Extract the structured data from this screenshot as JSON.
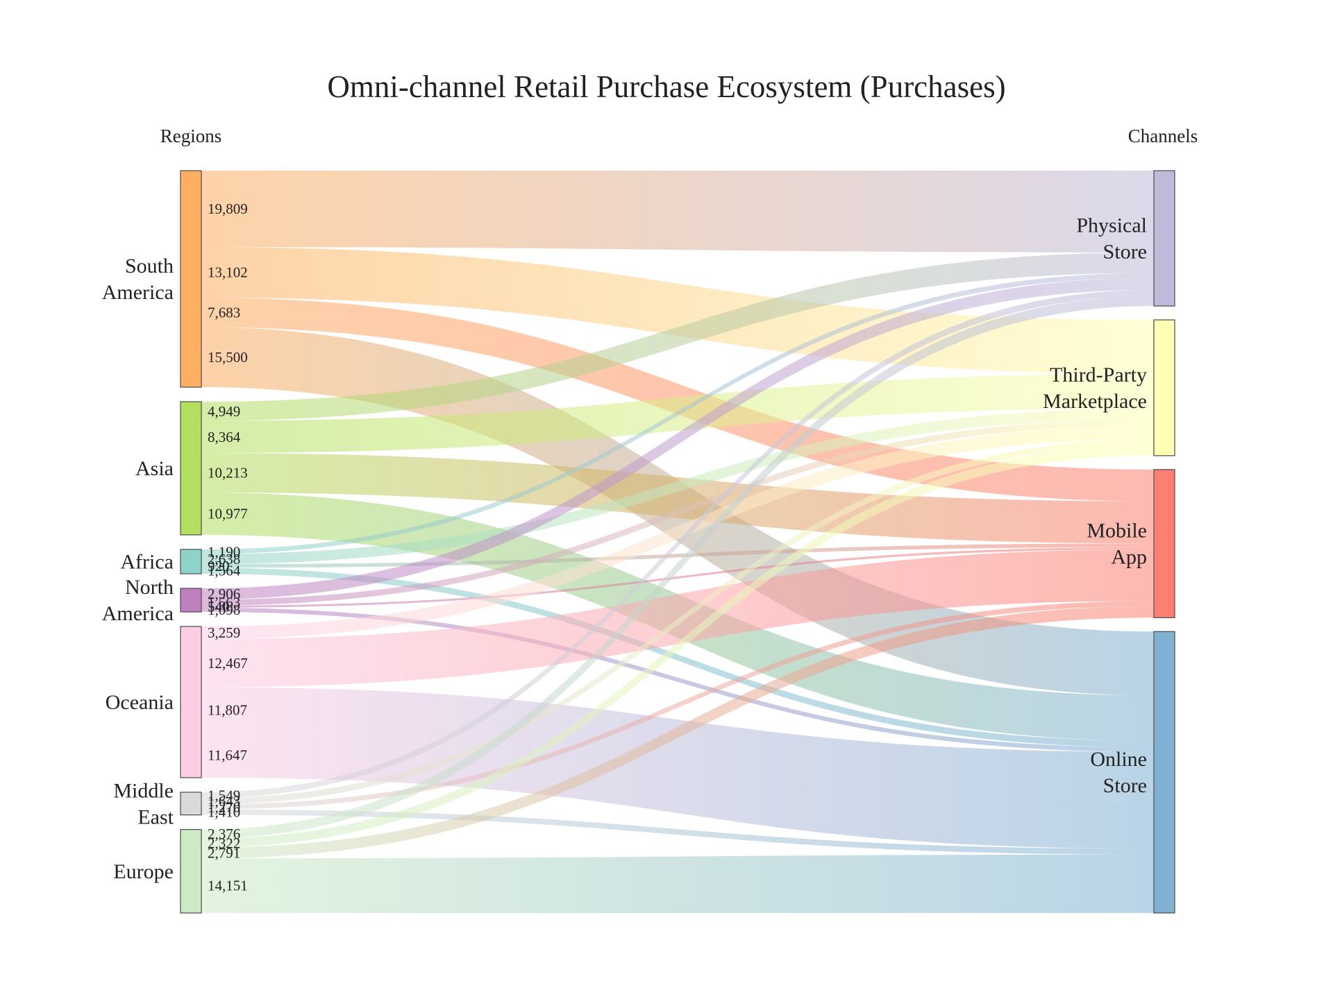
{
  "chart_data": {
    "type": "sankey",
    "title": "Omni-channel Retail Purchase Ecosystem (Purchases)",
    "source_column_label": "Regions",
    "target_column_label": "Channels",
    "sources": [
      {
        "name": "South America",
        "lines": [
          "South",
          "America"
        ],
        "color": "#fdae61"
      },
      {
        "name": "Asia",
        "lines": [
          "Asia"
        ],
        "color": "#b2df5f"
      },
      {
        "name": "Africa",
        "lines": [
          "Africa"
        ],
        "color": "#8dd3c7"
      },
      {
        "name": "North America",
        "lines": [
          "North",
          "America"
        ],
        "color": "#bf80c0"
      },
      {
        "name": "Oceania",
        "lines": [
          "Oceania"
        ],
        "color": "#fccde5"
      },
      {
        "name": "Middle East",
        "lines": [
          "Middle",
          "East"
        ],
        "color": "#d9d9d9"
      },
      {
        "name": "Europe",
        "lines": [
          "Europe"
        ],
        "color": "#ccebc5"
      }
    ],
    "targets": [
      {
        "name": "Physical Store",
        "lines": [
          "Physical",
          "Store"
        ],
        "color": "#bebada"
      },
      {
        "name": "Third-Party Marketplace",
        "lines": [
          "Third-Party",
          "Marketplace"
        ],
        "color": "#ffffb3"
      },
      {
        "name": "Mobile App",
        "lines": [
          "Mobile",
          "App"
        ],
        "color": "#fb8072"
      },
      {
        "name": "Online Store",
        "lines": [
          "Online",
          "Store"
        ],
        "color": "#80b1d3"
      }
    ],
    "flows": [
      {
        "source": "South America",
        "target": "Physical Store",
        "value": 19809,
        "label": "19,809"
      },
      {
        "source": "South America",
        "target": "Third-Party Marketplace",
        "value": 13102,
        "label": "13,102"
      },
      {
        "source": "South America",
        "target": "Mobile App",
        "value": 7683,
        "label": "7,683"
      },
      {
        "source": "South America",
        "target": "Online Store",
        "value": 15500,
        "label": "15,500"
      },
      {
        "source": "Asia",
        "target": "Physical Store",
        "value": 4949,
        "label": "4,949"
      },
      {
        "source": "Asia",
        "target": "Third-Party Marketplace",
        "value": 8364,
        "label": "8,364"
      },
      {
        "source": "Asia",
        "target": "Mobile App",
        "value": 10213,
        "label": "10,213"
      },
      {
        "source": "Asia",
        "target": "Online Store",
        "value": 10977,
        "label": "10,977"
      },
      {
        "source": "Africa",
        "target": "Physical Store",
        "value": 1190,
        "label": "1,190"
      },
      {
        "source": "Africa",
        "target": "Third-Party Marketplace",
        "value": 2638,
        "label": "2,638"
      },
      {
        "source": "Africa",
        "target": "Mobile App",
        "value": 920,
        "label": "920"
      },
      {
        "source": "Africa",
        "target": "Online Store",
        "value": 1564,
        "label": "1,564"
      },
      {
        "source": "North America",
        "target": "Physical Store",
        "value": 2906,
        "label": "2,906"
      },
      {
        "source": "North America",
        "target": "Third-Party Marketplace",
        "value": 1563,
        "label": "1,563"
      },
      {
        "source": "North America",
        "target": "Mobile App",
        "value": 540,
        "label": "540"
      },
      {
        "source": "North America",
        "target": "Online Store",
        "value": 1098,
        "label": "1,098"
      },
      {
        "source": "Oceania",
        "target": "Third-Party Marketplace",
        "value": 3259,
        "label": "3,259"
      },
      {
        "source": "Oceania",
        "target": "Mobile App",
        "value": 12467,
        "label": "12,467"
      },
      {
        "source": "Oceania",
        "target": "Online Store",
        "value": 11807,
        "label": "11,807"
      },
      {
        "source": "Oceania",
        "target": "Online Store",
        "value": 11647,
        "label": "11,647"
      },
      {
        "source": "Middle East",
        "target": "Physical Store",
        "value": 1549,
        "label": "1,549"
      },
      {
        "source": "Middle East",
        "target": "Third-Party Marketplace",
        "value": 1643,
        "label": "1,643"
      },
      {
        "source": "Middle East",
        "target": "Mobile App",
        "value": 1270,
        "label": "1,270"
      },
      {
        "source": "Middle East",
        "target": "Online Store",
        "value": 1410,
        "label": "1,410"
      },
      {
        "source": "Europe",
        "target": "Physical Store",
        "value": 2376,
        "label": "2,376"
      },
      {
        "source": "Europe",
        "target": "Third-Party Marketplace",
        "value": 2322,
        "label": "2,322"
      },
      {
        "source": "Europe",
        "target": "Mobile App",
        "value": 2791,
        "label": "2,791"
      },
      {
        "source": "Europe",
        "target": "Online Store",
        "value": 14151,
        "label": "14,151"
      }
    ]
  }
}
